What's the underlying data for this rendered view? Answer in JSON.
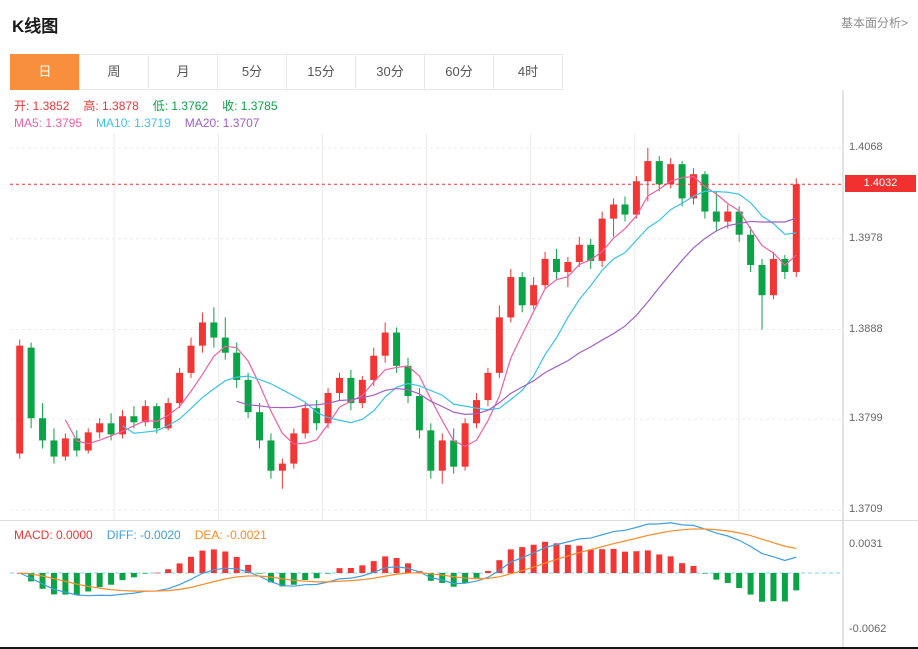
{
  "header": {
    "title": "K线图",
    "link_label": "基本面分析>"
  },
  "tabs": {
    "items": [
      {
        "label": "日",
        "name": "tab-day",
        "active": true
      },
      {
        "label": "周",
        "name": "tab-week",
        "active": false
      },
      {
        "label": "月",
        "name": "tab-month",
        "active": false
      },
      {
        "label": "5分",
        "name": "tab-5min",
        "active": false
      },
      {
        "label": "15分",
        "name": "tab-15min",
        "active": false
      },
      {
        "label": "30分",
        "name": "tab-30min",
        "active": false
      },
      {
        "label": "60分",
        "name": "tab-60min",
        "active": false
      },
      {
        "label": "4时",
        "name": "tab-4hour",
        "active": false
      }
    ]
  },
  "legend": {
    "ohlc": [
      {
        "label": "开:",
        "value": "1.3852",
        "color": "#f23535",
        "name": "open-value"
      },
      {
        "label": "高:",
        "value": "1.3878",
        "color": "#f23535",
        "name": "high-value"
      },
      {
        "label": "低:",
        "value": "1.3762",
        "color": "#0aa347",
        "name": "low-value"
      },
      {
        "label": "收:",
        "value": "1.3785",
        "color": "#0aa347",
        "name": "close-value"
      }
    ],
    "ma": [
      {
        "label": "MA5:",
        "value": "1.3795",
        "color": "#f25fa2",
        "name": "ma5-value"
      },
      {
        "label": "MA10:",
        "value": "1.3719",
        "color": "#3bc4e6",
        "name": "ma10-value"
      },
      {
        "label": "MA20:",
        "value": "1.3707",
        "color": "#a25ec7",
        "name": "ma20-value"
      }
    ],
    "macd": [
      {
        "label": "MACD:",
        "value": "0.0000",
        "color": "#f23535",
        "name": "macd-value"
      },
      {
        "label": "DIFF:",
        "value": "-0.0020",
        "color": "#3f9fe0",
        "name": "diff-value"
      },
      {
        "label": "DEA:",
        "value": "-0.0021",
        "color": "#ff8a26",
        "name": "dea-value"
      }
    ]
  },
  "axes": {
    "price_ticks": [
      "1.4068",
      "1.3978",
      "1.3888",
      "1.3799",
      "1.3709"
    ],
    "current_price": "1.4032",
    "macd_ticks": [
      "0.0031",
      "-0.0062"
    ]
  },
  "colors": {
    "up": "#f23535",
    "down": "#0aa347",
    "ma5": "#f25fa2",
    "ma10": "#3bc4e6",
    "ma20": "#a25ec7",
    "diff": "#3f9fe0",
    "dea": "#ff8a26",
    "active_tab": "#f78f3d",
    "current_line": "#f23030",
    "zero_line": "#7fd4ea",
    "grid": "#ececec",
    "axis_line": "#c8c8c8",
    "axis_text": "#666666"
  },
  "chart_data": {
    "type": "candlestick",
    "title": "K线图 (日K)",
    "legend_position": "top-left",
    "grid": true,
    "price_axis": {
      "min": 1.3709,
      "max": 1.4068,
      "ticks": [
        1.4068,
        1.3978,
        1.3888,
        1.3799,
        1.3709
      ],
      "current": 1.4032
    },
    "macd_axis": {
      "ticks": [
        0.0031,
        -0.0062
      ],
      "zero_line": 0
    },
    "overlays": [
      "MA5",
      "MA10",
      "MA20"
    ],
    "indicator": "MACD(12,26,9)",
    "ohlc_readout": {
      "open": 1.3852,
      "high": 1.3878,
      "low": 1.3762,
      "close": 1.3785
    },
    "ma_readout": {
      "ma5": 1.3795,
      "ma10": 1.3719,
      "ma20": 1.3707
    },
    "macd_readout": {
      "macd": 0.0,
      "diff": -0.002,
      "dea": -0.0021
    },
    "candles": [
      [
        1.3765,
        1.3878,
        1.376,
        1.3872
      ],
      [
        1.387,
        1.3875,
        1.379,
        1.38
      ],
      [
        1.38,
        1.3815,
        1.377,
        1.3778
      ],
      [
        1.3778,
        1.379,
        1.3755,
        1.3762
      ],
      [
        1.3762,
        1.3785,
        1.3758,
        1.378
      ],
      [
        1.378,
        1.3788,
        1.3762,
        1.3768
      ],
      [
        1.3768,
        1.379,
        1.3765,
        1.3786
      ],
      [
        1.3786,
        1.38,
        1.378,
        1.3795
      ],
      [
        1.3795,
        1.3805,
        1.3778,
        1.3784
      ],
      [
        1.3784,
        1.3808,
        1.378,
        1.3802
      ],
      [
        1.3802,
        1.3812,
        1.379,
        1.3796
      ],
      [
        1.3796,
        1.3818,
        1.3792,
        1.3812
      ],
      [
        1.3812,
        1.3815,
        1.3785,
        1.379
      ],
      [
        1.379,
        1.382,
        1.3788,
        1.3815
      ],
      [
        1.3815,
        1.385,
        1.381,
        1.3845
      ],
      [
        1.3845,
        1.388,
        1.384,
        1.3872
      ],
      [
        1.3872,
        1.3905,
        1.3865,
        1.3895
      ],
      [
        1.3895,
        1.391,
        1.387,
        1.388
      ],
      [
        1.388,
        1.39,
        1.3858,
        1.3865
      ],
      [
        1.3865,
        1.3875,
        1.383,
        1.3838
      ],
      [
        1.3838,
        1.3845,
        1.38,
        1.3806
      ],
      [
        1.3806,
        1.3815,
        1.377,
        1.3778
      ],
      [
        1.3778,
        1.3785,
        1.374,
        1.3748
      ],
      [
        1.3748,
        1.376,
        1.373,
        1.3755
      ],
      [
        1.3755,
        1.379,
        1.375,
        1.3785
      ],
      [
        1.3785,
        1.3815,
        1.378,
        1.381
      ],
      [
        1.381,
        1.3818,
        1.3788,
        1.3795
      ],
      [
        1.3795,
        1.383,
        1.379,
        1.3825
      ],
      [
        1.3825,
        1.3845,
        1.3818,
        1.384
      ],
      [
        1.384,
        1.3848,
        1.3808,
        1.3815
      ],
      [
        1.3815,
        1.3842,
        1.381,
        1.3838
      ],
      [
        1.3838,
        1.387,
        1.3832,
        1.3862
      ],
      [
        1.3862,
        1.3895,
        1.3855,
        1.3885
      ],
      [
        1.3885,
        1.389,
        1.3845,
        1.3852
      ],
      [
        1.3852,
        1.386,
        1.3815,
        1.3822
      ],
      [
        1.3822,
        1.383,
        1.378,
        1.3788
      ],
      [
        1.3788,
        1.3795,
        1.374,
        1.3748
      ],
      [
        1.3748,
        1.3785,
        1.3735,
        1.3778
      ],
      [
        1.3778,
        1.379,
        1.3745,
        1.3752
      ],
      [
        1.3752,
        1.38,
        1.3748,
        1.3795
      ],
      [
        1.3795,
        1.3825,
        1.379,
        1.3818
      ],
      [
        1.3818,
        1.385,
        1.3812,
        1.3845
      ],
      [
        1.3845,
        1.3912,
        1.384,
        1.39
      ],
      [
        1.39,
        1.3948,
        1.3895,
        1.394
      ],
      [
        1.394,
        1.3945,
        1.3905,
        1.3912
      ],
      [
        1.3912,
        1.394,
        1.3908,
        1.3932
      ],
      [
        1.3932,
        1.3965,
        1.3928,
        1.3958
      ],
      [
        1.3958,
        1.3968,
        1.3938,
        1.3945
      ],
      [
        1.3945,
        1.396,
        1.393,
        1.3955
      ],
      [
        1.3955,
        1.398,
        1.395,
        1.3972
      ],
      [
        1.3972,
        1.3978,
        1.3948,
        1.3956
      ],
      [
        1.3956,
        1.4005,
        1.395,
        1.3998
      ],
      [
        1.3998,
        1.4018,
        1.398,
        1.4012
      ],
      [
        1.4012,
        1.402,
        1.3995,
        1.4002
      ],
      [
        1.4002,
        1.404,
        1.3998,
        1.4035
      ],
      [
        1.4035,
        1.4068,
        1.4015,
        1.4055
      ],
      [
        1.4055,
        1.406,
        1.4025,
        1.4032
      ],
      [
        1.4032,
        1.4058,
        1.4028,
        1.4052
      ],
      [
        1.4052,
        1.4055,
        1.401,
        1.4018
      ],
      [
        1.4018,
        1.4048,
        1.4012,
        1.4042
      ],
      [
        1.4042,
        1.4045,
        1.3998,
        1.4005
      ],
      [
        1.4005,
        1.4025,
        1.3985,
        1.3995
      ],
      [
        1.3995,
        1.4012,
        1.3988,
        1.4005
      ],
      [
        1.4005,
        1.401,
        1.3975,
        1.3982
      ],
      [
        1.3982,
        1.399,
        1.3945,
        1.3952
      ],
      [
        1.3952,
        1.3958,
        1.3888,
        1.3922
      ],
      [
        1.3922,
        1.3965,
        1.3918,
        1.3958
      ],
      [
        1.3958,
        1.3962,
        1.3938,
        1.3945
      ],
      [
        1.3945,
        1.4038,
        1.394,
        1.4032
      ]
    ]
  }
}
